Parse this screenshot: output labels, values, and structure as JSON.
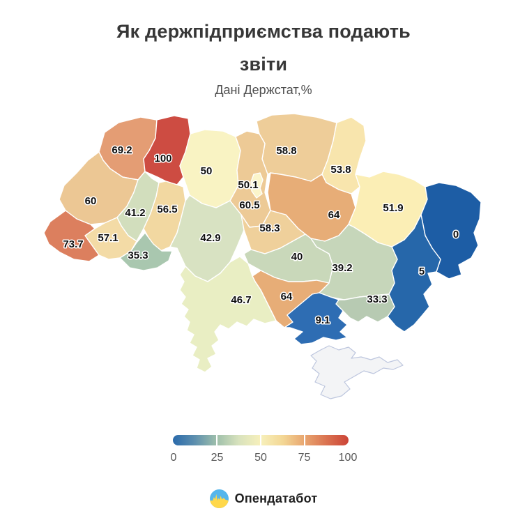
{
  "title": "Як держпідприємства подають звіти",
  "subtitle": "Дані Держстат,%",
  "legend": {
    "min": 0,
    "max": 100,
    "ticks": [
      "0",
      "25",
      "50",
      "75",
      "100"
    ],
    "gradient": [
      "#2a6aab",
      "#5d8fae",
      "#9fc0ab",
      "#d8e2bd",
      "#f7f0bb",
      "#f3d795",
      "#e8a56f",
      "#da7250",
      "#cc4437"
    ]
  },
  "footer": {
    "brand": "Опендатабот",
    "icon": "opendatabot-logo",
    "icon_colors": {
      "sky": "#55b6ec",
      "yellow": "#ffd84a"
    }
  },
  "chart_data": {
    "type": "choropleth_map",
    "geography": "Ukraine oblasts",
    "title": "Як держпідприємства подають звіти",
    "subtitle": "Дані Держстат,%",
    "unit": "%",
    "colorscale": {
      "min": 0,
      "max": 100,
      "style": "blue-yellow-red diverging",
      "no_data_color": "#f3f4f6"
    },
    "legend_position": "bottom-center",
    "regions": [
      {
        "id": "volyn",
        "value": 69.2,
        "color": "#e49d74"
      },
      {
        "id": "rivne",
        "value": 100,
        "color": "#cd4c42"
      },
      {
        "id": "zhytomyr",
        "value": 50,
        "color": "#f9f3c3"
      },
      {
        "id": "chernihiv",
        "value": 58.8,
        "color": "#eecd99"
      },
      {
        "id": "sumy",
        "value": 53.8,
        "color": "#f8e5ad"
      },
      {
        "id": "kyiv-oblast",
        "value": 60.5,
        "color": "#edca96"
      },
      {
        "id": "kyiv-city",
        "value": 50.1,
        "color": "#fbf5cb"
      },
      {
        "id": "lviv",
        "value": 60,
        "color": "#ecc794"
      },
      {
        "id": "ternopil",
        "value": 41.2,
        "color": "#d2debd"
      },
      {
        "id": "khmelnytskyi",
        "value": 56.5,
        "color": "#f2d8a1"
      },
      {
        "id": "ivano-frankivsk",
        "value": 57.1,
        "color": "#f3dba6"
      },
      {
        "id": "zakarpattia",
        "value": 73.7,
        "color": "#dc7f5e"
      },
      {
        "id": "chernivtsi",
        "value": 35.3,
        "color": "#a9c7af"
      },
      {
        "id": "vinnytsia",
        "value": 42.9,
        "color": "#d8e2c2"
      },
      {
        "id": "cherkasy",
        "value": 58.3,
        "color": "#efd09b"
      },
      {
        "id": "poltava",
        "value": 64,
        "color": "#e7ad77"
      },
      {
        "id": "kharkiv",
        "value": 51.9,
        "color": "#fbeeb5"
      },
      {
        "id": "luhansk",
        "value": 0,
        "color": "#1d5da5"
      },
      {
        "id": "donetsk",
        "value": 5,
        "color": "#2667aa"
      },
      {
        "id": "kirovohrad",
        "value": 40,
        "color": "#c9d8ba"
      },
      {
        "id": "dnipropetrovsk",
        "value": 39.2,
        "color": "#c6d6ba"
      },
      {
        "id": "zaporizhzhia",
        "value": 33.3,
        "color": "#b7cab2"
      },
      {
        "id": "mykolaiv",
        "value": 64,
        "color": "#e7ad77"
      },
      {
        "id": "odesa",
        "value": 46.7,
        "color": "#e9eec3"
      },
      {
        "id": "kherson",
        "value": 9.1,
        "color": "#2e6db3"
      },
      {
        "id": "crimea",
        "value": null,
        "color": "#f3f4f6",
        "no_data": true
      }
    ]
  }
}
